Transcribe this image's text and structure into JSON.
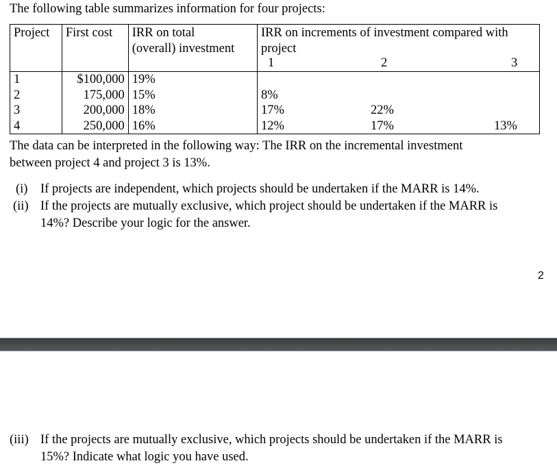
{
  "intro": "The following table summarizes information for four projects:",
  "table": {
    "headers": {
      "project": "Project",
      "first_cost": "First cost",
      "irr_total_1": "IRR on total",
      "irr_total_2": "(overall) investment",
      "irr_incr_1": "IRR on increments of investment compared with",
      "irr_incr_2": "project",
      "compared": [
        "1",
        "2",
        "3"
      ]
    },
    "rows": [
      {
        "project": "1",
        "first_cost": "$100,000",
        "irr_total": "19%",
        "incr": [
          "",
          "",
          ""
        ]
      },
      {
        "project": "2",
        "first_cost": "175,000",
        "irr_total": "15%",
        "incr": [
          "8%",
          "",
          ""
        ]
      },
      {
        "project": "3",
        "first_cost": "200,000",
        "irr_total": "18%",
        "incr": [
          "17%",
          "22%",
          ""
        ]
      },
      {
        "project": "4",
        "first_cost": "250,000",
        "irr_total": "16%",
        "incr": [
          "12%",
          "17%",
          "13%"
        ]
      }
    ]
  },
  "interpretation_1": "The data can be interpreted in the following way: The IRR on the incremental investment",
  "interpretation_2": "between project 4 and project 3 is 13%.",
  "questions": {
    "i_label": "(i)",
    "i_text": "If projects are independent, which projects should be undertaken if the MARR is 14%.",
    "ii_label": "(ii)",
    "ii_text_1": "If the projects are mutually exclusive, which project should be undertaken if the MARR is",
    "ii_text_2": "14%? Describe your logic for the answer.",
    "iii_label": "(iii)",
    "iii_text_1": "If the projects are mutually exclusive, which projects should be undertaken if the MARR is",
    "iii_text_2": "15%? Indicate what logic you have used."
  },
  "page_number": "2"
}
